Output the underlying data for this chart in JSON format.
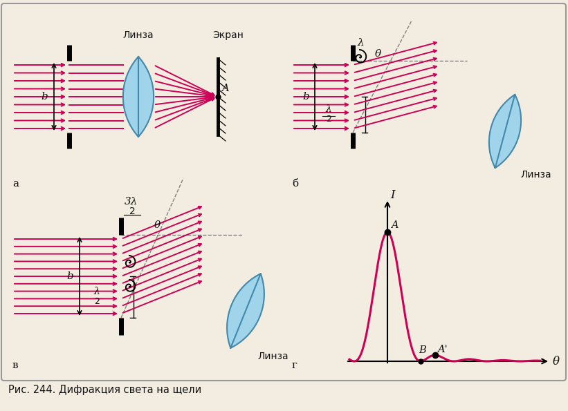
{
  "bg_color": "#f2ede0",
  "border_color": "#999999",
  "ray_color": "#cc0055",
  "lens_color": "#85ccee",
  "lens_edge_color": "#4488aa",
  "text_color": "#111111",
  "title_text": "Рис. 244. Дифракция света на щели",
  "panel_labels": [
    "а",
    "б",
    "в",
    "г"
  ],
  "label_linza": "Линза",
  "label_ekran": "Экран"
}
